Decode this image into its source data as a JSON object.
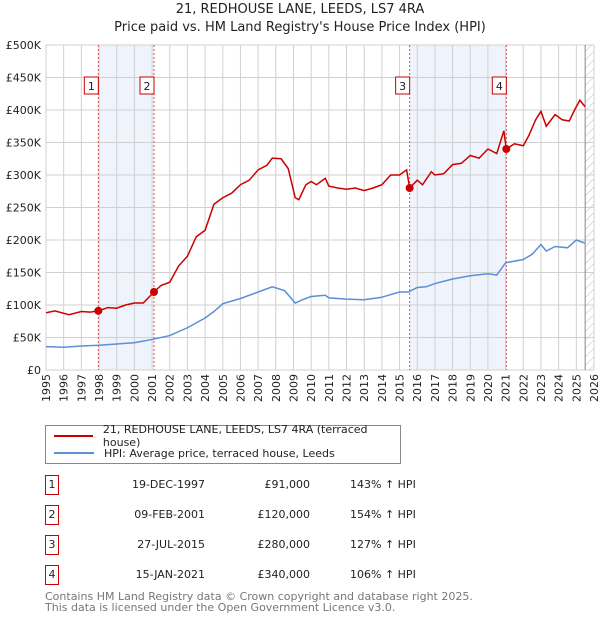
{
  "chart_data": {
    "type": "line",
    "title": "21, REDHOUSE LANE, LEEDS, LS7 4RA",
    "subtitle": "Price paid vs. HM Land Registry's House Price Index (HPI)",
    "xlim": [
      1995,
      2026
    ],
    "ylim": [
      0,
      500000
    ],
    "x_ticks": [
      "1995",
      "1996",
      "1997",
      "1998",
      "1999",
      "2000",
      "2001",
      "2002",
      "2003",
      "2004",
      "2005",
      "2006",
      "2007",
      "2008",
      "2009",
      "2010",
      "2011",
      "2012",
      "2013",
      "2014",
      "2015",
      "2016",
      "2017",
      "2018",
      "2019",
      "2020",
      "2021",
      "2022",
      "2023",
      "2024",
      "2025",
      "2026"
    ],
    "y_ticks": [
      {
        "v": 0,
        "label": "£0"
      },
      {
        "v": 50000,
        "label": "£50K"
      },
      {
        "v": 100000,
        "label": "£100K"
      },
      {
        "v": 150000,
        "label": "£150K"
      },
      {
        "v": 200000,
        "label": "£200K"
      },
      {
        "v": 250000,
        "label": "£250K"
      },
      {
        "v": 300000,
        "label": "£300K"
      },
      {
        "v": 350000,
        "label": "£350K"
      },
      {
        "v": 400000,
        "label": "£400K"
      },
      {
        "v": 450000,
        "label": "£450K"
      },
      {
        "v": 500000,
        "label": "£500K"
      }
    ],
    "grid": true,
    "forecast_hatch_from": 2025.5,
    "shaded_ranges": [
      [
        1997.96,
        2001.11
      ],
      [
        2015.57,
        2021.04
      ]
    ],
    "series": [
      {
        "name": "21, REDHOUSE LANE, LEEDS, LS7 4RA (terraced house)",
        "color": "#cc0000",
        "points": [
          [
            1995,
            88
          ],
          [
            1995.5,
            91
          ],
          [
            1996.3,
            85
          ],
          [
            1997,
            90
          ],
          [
            1997.5,
            89
          ],
          [
            1997.96,
            91
          ],
          [
            1998.5,
            96
          ],
          [
            1999,
            95
          ],
          [
            1999.5,
            100
          ],
          [
            2000,
            103
          ],
          [
            2000.5,
            103
          ],
          [
            2001.11,
            120
          ],
          [
            2001.5,
            130
          ],
          [
            2002,
            135
          ],
          [
            2002.5,
            160
          ],
          [
            2003,
            175
          ],
          [
            2003.5,
            205
          ],
          [
            2004,
            215
          ],
          [
            2004.5,
            255
          ],
          [
            2005,
            265
          ],
          [
            2005.5,
            272
          ],
          [
            2006,
            285
          ],
          [
            2006.5,
            292
          ],
          [
            2007,
            308
          ],
          [
            2007.5,
            315
          ],
          [
            2007.8,
            326
          ],
          [
            2008.3,
            325
          ],
          [
            2008.7,
            310
          ],
          [
            2009.1,
            265
          ],
          [
            2009.3,
            262
          ],
          [
            2009.7,
            285
          ],
          [
            2010,
            290
          ],
          [
            2010.3,
            285
          ],
          [
            2010.8,
            295
          ],
          [
            2011,
            283
          ],
          [
            2011.5,
            280
          ],
          [
            2012,
            278
          ],
          [
            2012.5,
            280
          ],
          [
            2013,
            276
          ],
          [
            2013.5,
            280
          ],
          [
            2014,
            285
          ],
          [
            2014.5,
            300
          ],
          [
            2015,
            300
          ],
          [
            2015.4,
            308
          ],
          [
            2015.57,
            280
          ],
          [
            2016,
            292
          ],
          [
            2016.3,
            285
          ],
          [
            2016.8,
            305
          ],
          [
            2017,
            300
          ],
          [
            2017.5,
            302
          ],
          [
            2018,
            316
          ],
          [
            2018.5,
            318
          ],
          [
            2019,
            330
          ],
          [
            2019.5,
            326
          ],
          [
            2020,
            340
          ],
          [
            2020.5,
            333
          ],
          [
            2020.9,
            368
          ],
          [
            2021.04,
            340
          ],
          [
            2021.5,
            348
          ],
          [
            2022,
            345
          ],
          [
            2022.3,
            360
          ],
          [
            2022.7,
            385
          ],
          [
            2023,
            398
          ],
          [
            2023.3,
            375
          ],
          [
            2023.8,
            393
          ],
          [
            2024.2,
            385
          ],
          [
            2024.6,
            383
          ],
          [
            2024.9,
            400
          ],
          [
            2025.2,
            415
          ],
          [
            2025.5,
            405
          ]
        ]
      },
      {
        "name": "HPI: Average price, terraced house, Leeds",
        "color": "#5b8fd6",
        "points": [
          [
            1995,
            36
          ],
          [
            1996,
            35
          ],
          [
            1997,
            37
          ],
          [
            1998,
            38
          ],
          [
            1999,
            40
          ],
          [
            2000,
            42
          ],
          [
            2001,
            47
          ],
          [
            2002,
            53
          ],
          [
            2003,
            65
          ],
          [
            2004,
            80
          ],
          [
            2004.5,
            90
          ],
          [
            2005,
            102
          ],
          [
            2006,
            110
          ],
          [
            2007,
            120
          ],
          [
            2007.8,
            128
          ],
          [
            2008.5,
            122
          ],
          [
            2009.1,
            103
          ],
          [
            2009.5,
            108
          ],
          [
            2010,
            113
          ],
          [
            2010.8,
            115
          ],
          [
            2011,
            111
          ],
          [
            2012,
            109
          ],
          [
            2013,
            108
          ],
          [
            2014,
            112
          ],
          [
            2015,
            120
          ],
          [
            2015.5,
            120
          ],
          [
            2016,
            127
          ],
          [
            2016.5,
            128
          ],
          [
            2017,
            133
          ],
          [
            2018,
            140
          ],
          [
            2019,
            145
          ],
          [
            2020,
            148
          ],
          [
            2020.5,
            146
          ],
          [
            2021,
            165
          ],
          [
            2022,
            170
          ],
          [
            2022.5,
            178
          ],
          [
            2023,
            193
          ],
          [
            2023.3,
            183
          ],
          [
            2023.8,
            190
          ],
          [
            2024.5,
            188
          ],
          [
            2025,
            200
          ],
          [
            2025.5,
            195
          ]
        ]
      }
    ],
    "sales": [
      {
        "n": "1",
        "x": 1997.96,
        "value": 91000,
        "date": "19-DEC-1997",
        "price": "£91,000",
        "hpi": "143% ↑ HPI"
      },
      {
        "n": "2",
        "x": 2001.11,
        "value": 120000,
        "date": "09-FEB-2001",
        "price": "£120,000",
        "hpi": "154% ↑ HPI"
      },
      {
        "n": "3",
        "x": 2015.57,
        "value": 280000,
        "date": "27-JUL-2015",
        "price": "£280,000",
        "hpi": "127% ↑ HPI"
      },
      {
        "n": "4",
        "x": 2021.04,
        "value": 340000,
        "date": "15-JAN-2021",
        "price": "£340,000",
        "hpi": "106% ↑ HPI"
      }
    ],
    "legend_placement": "below"
  },
  "footer": {
    "line1": "Contains HM Land Registry data © Crown copyright and database right 2025.",
    "line2": "This data is licensed under the Open Government Licence v3.0."
  }
}
